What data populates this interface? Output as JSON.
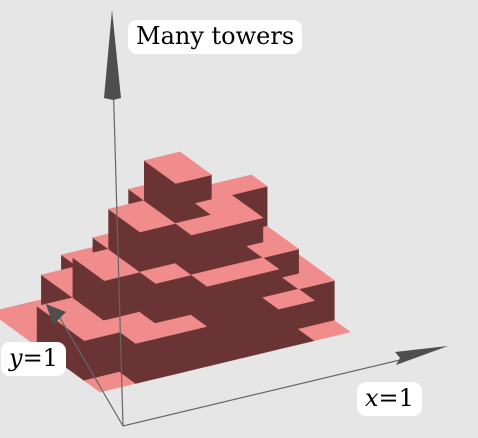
{
  "title": "Many towers",
  "x_axis_label": {
    "var": "x",
    "rest": "=1"
  },
  "y_axis_label": {
    "var": "y",
    "rest": "=1"
  },
  "colors": {
    "background": "#e6e6e6",
    "top_face": "#f08c8c",
    "side_face": "#6b3434",
    "axis": "#555555"
  },
  "towers": [
    [
      0,
      1,
      1,
      2,
      2,
      1,
      0
    ],
    [
      1,
      1,
      2,
      3,
      3,
      2,
      1
    ],
    [
      1,
      2,
      3,
      4,
      3,
      2,
      1
    ],
    [
      1,
      2,
      3,
      4,
      3,
      3,
      1
    ],
    [
      0,
      1,
      2,
      3,
      2,
      2,
      0
    ],
    [
      0,
      1,
      1,
      2,
      2,
      1,
      0
    ],
    [
      0,
      0,
      1,
      1,
      1,
      0,
      0
    ]
  ]
}
